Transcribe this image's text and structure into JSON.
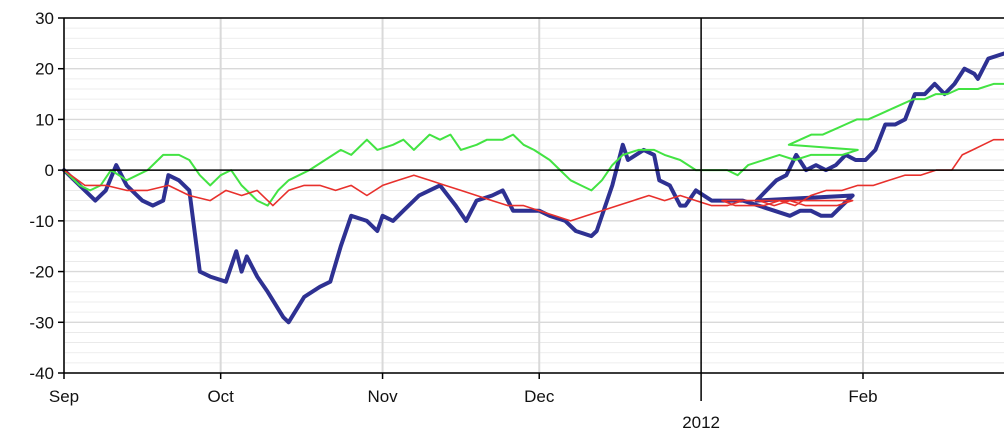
{
  "chart_data": {
    "type": "line",
    "ylim": [
      -40,
      30
    ],
    "yticks": [
      30,
      20,
      10,
      0,
      -10,
      -20,
      -30,
      -40
    ],
    "xlim": [
      "2011-09-01",
      "2012-02-28"
    ],
    "xticks": [
      {
        "label": "Sep",
        "date": "2011-09-01"
      },
      {
        "label": "Oct",
        "date": "2011-10-01"
      },
      {
        "label": "Nov",
        "date": "2011-11-01"
      },
      {
        "label": "Dec",
        "date": "2011-12-01"
      },
      {
        "label": "Feb",
        "date": "2012-02-01"
      }
    ],
    "year_marker": {
      "label": "2012",
      "date": "2012-01-01"
    },
    "grid": true,
    "colors": {
      "blue": "#2e3192",
      "green": "#43e343",
      "red": "#e8302c",
      "grid": "#d9d9d9",
      "axis": "#000000"
    },
    "series": [
      {
        "color": "#2e3192",
        "points": [
          [
            "2011-09-01",
            0
          ],
          [
            "2011-09-04",
            -3
          ],
          [
            "2011-09-07",
            -6
          ],
          [
            "2011-09-09",
            -4
          ],
          [
            "2011-09-11",
            1
          ],
          [
            "2011-09-13",
            -3
          ],
          [
            "2011-09-16",
            -6
          ],
          [
            "2011-09-18",
            -7
          ],
          [
            "2011-09-20",
            -6
          ],
          [
            "2011-09-21",
            -1
          ],
          [
            "2011-09-23",
            -2
          ],
          [
            "2011-09-25",
            -4
          ],
          [
            "2011-09-27",
            -20
          ],
          [
            "2011-09-29",
            -21
          ],
          [
            "2011-10-02",
            -22
          ],
          [
            "2011-10-04",
            -16
          ],
          [
            "2011-10-05",
            -20
          ],
          [
            "2011-10-06",
            -17
          ],
          [
            "2011-10-08",
            -21
          ],
          [
            "2011-10-10",
            -24
          ],
          [
            "2011-10-13",
            -29
          ],
          [
            "2011-10-14",
            -30
          ],
          [
            "2011-10-17",
            -25
          ],
          [
            "2011-10-20",
            -23
          ],
          [
            "2011-10-22",
            -22
          ],
          [
            "2011-10-24",
            -15
          ],
          [
            "2011-10-26",
            -9
          ],
          [
            "2011-10-29",
            -10
          ],
          [
            "2011-10-31",
            -12
          ],
          [
            "2011-11-01",
            -9
          ],
          [
            "2011-11-03",
            -10
          ],
          [
            "2011-11-05",
            -8
          ],
          [
            "2011-11-08",
            -5
          ],
          [
            "2011-11-10",
            -4
          ],
          [
            "2011-11-12",
            -3
          ],
          [
            "2011-11-15",
            -7
          ],
          [
            "2011-11-17",
            -10
          ],
          [
            "2011-11-19",
            -6
          ],
          [
            "2011-11-22",
            -5
          ],
          [
            "2011-11-24",
            -4
          ],
          [
            "2011-11-26",
            -8
          ],
          [
            "2011-11-28",
            -8
          ],
          [
            "2011-12-01",
            -8
          ],
          [
            "2011-12-03",
            -9
          ],
          [
            "2011-12-06",
            -10
          ],
          [
            "2011-12-08",
            -12
          ],
          [
            "2011-12-11",
            -13
          ],
          [
            "2011-12-12",
            -12
          ],
          [
            "2011-12-15",
            -3
          ],
          [
            "2011-12-17",
            5
          ],
          [
            "2011-12-18",
            2
          ],
          [
            "2011-12-21",
            4
          ],
          [
            "2011-12-23",
            3
          ],
          [
            "2011-12-24",
            -2
          ],
          [
            "2011-12-26",
            -3
          ],
          [
            "2011-12-28",
            -7
          ],
          [
            "2011-12-29",
            -7
          ],
          [
            "2011-12-31",
            -4
          ],
          [
            "2012-01-03",
            -6
          ],
          [
            "2012-01-06",
            -6
          ],
          [
            "2012-01-09",
            -6
          ],
          [
            "2012-01-12",
            -7
          ],
          [
            "2012-01-15",
            -8
          ],
          [
            "2012-01-18",
            -9
          ],
          [
            "2012-01-20",
            -8
          ],
          [
            "2012-01-22",
            -8
          ],
          [
            "2012-01-24",
            -9
          ],
          [
            "2012-01-26",
            -9
          ],
          [
            "2012-01-28",
            -7
          ],
          [
            "2012-01-30",
            -5
          ],
          [
            "2012-01-01",
            -6
          ],
          [
            "2012-01-04",
            -4
          ],
          [
            "2012-01-07",
            -2
          ],
          [
            "2012-01-10",
            -1
          ],
          [
            "2012-01-12",
            3
          ],
          [
            "2012-01-15",
            0
          ],
          [
            "2012-01-17",
            1
          ],
          [
            "2012-01-19",
            0
          ],
          [
            "2012-01-20",
            1
          ],
          [
            "2012-01-22",
            3
          ],
          [
            "2012-01-24",
            2
          ],
          [
            "2012-01-26",
            2
          ],
          [
            "2012-01-29",
            4
          ],
          [
            "2012-01-31",
            9
          ],
          [
            "2012-02-02",
            9
          ],
          [
            "2012-02-05",
            10
          ],
          [
            "2012-02-07",
            15
          ],
          [
            "2012-02-10",
            15
          ],
          [
            "2012-02-12",
            17
          ],
          [
            "2012-02-14",
            15
          ],
          [
            "2012-02-16",
            17
          ],
          [
            "2012-02-18",
            20
          ],
          [
            "2012-02-20",
            19
          ],
          [
            "2012-02-23",
            18
          ],
          [
            "2012-02-25",
            22
          ],
          [
            "2012-02-28",
            23
          ]
        ]
      },
      {
        "color": "#43e343",
        "points": [
          [
            "2011-09-01",
            0
          ],
          [
            "2011-09-04",
            -3
          ],
          [
            "2011-09-06",
            -4
          ],
          [
            "2011-09-08",
            -3
          ],
          [
            "2011-09-10",
            0
          ],
          [
            "2011-09-13",
            -2
          ],
          [
            "2011-09-15",
            -1
          ],
          [
            "2011-09-17",
            0
          ],
          [
            "2011-09-20",
            3
          ],
          [
            "2011-09-23",
            3
          ],
          [
            "2011-09-25",
            2
          ],
          [
            "2011-09-27",
            -1
          ],
          [
            "2011-09-29",
            -3
          ],
          [
            "2011-10-01",
            -1
          ],
          [
            "2011-10-03",
            0
          ],
          [
            "2011-10-05",
            -3
          ],
          [
            "2011-10-08",
            -6
          ],
          [
            "2011-10-10",
            -7
          ],
          [
            "2011-10-12",
            -4
          ],
          [
            "2011-10-14",
            -2
          ],
          [
            "2011-10-16",
            -1
          ],
          [
            "2011-10-18",
            0
          ],
          [
            "2011-10-21",
            2
          ],
          [
            "2011-10-24",
            4
          ],
          [
            "2011-10-26",
            3
          ],
          [
            "2011-10-29",
            6
          ],
          [
            "2011-10-31",
            4
          ],
          [
            "2011-11-03",
            5
          ],
          [
            "2011-11-05",
            6
          ],
          [
            "2011-11-07",
            4
          ],
          [
            "2011-11-10",
            7
          ],
          [
            "2011-11-12",
            6
          ],
          [
            "2011-11-14",
            7
          ],
          [
            "2011-11-16",
            4
          ],
          [
            "2011-11-19",
            5
          ],
          [
            "2011-11-21",
            6
          ],
          [
            "2011-11-24",
            6
          ],
          [
            "2011-11-26",
            7
          ],
          [
            "2011-11-28",
            5
          ],
          [
            "2011-11-30",
            4
          ],
          [
            "2011-12-03",
            2
          ],
          [
            "2011-12-05",
            0
          ],
          [
            "2011-12-07",
            -2
          ],
          [
            "2011-12-09",
            -3
          ],
          [
            "2011-12-11",
            -4
          ],
          [
            "2011-12-13",
            -2
          ],
          [
            "2011-12-15",
            1
          ],
          [
            "2011-12-17",
            3
          ],
          [
            "2011-12-20",
            4
          ],
          [
            "2011-12-23",
            4
          ],
          [
            "2011-12-25",
            3
          ],
          [
            "2011-12-28",
            2
          ],
          [
            "2011-12-31",
            0
          ],
          [
            "2012-01-03",
            0
          ],
          [
            "2012-01-06",
            0
          ],
          [
            "2012-01-08",
            -1
          ],
          [
            "2012-01-10",
            1
          ],
          [
            "2012-01-13",
            2
          ],
          [
            "2012-01-16",
            3
          ],
          [
            "2012-01-19",
            2
          ],
          [
            "2012-01-22",
            3
          ],
          [
            "2012-01-25",
            3
          ],
          [
            "2012-01-28",
            3
          ],
          [
            "2012-01-31",
            4
          ],
          [
            "2012-01-03",
            5
          ],
          [
            "2012-01-06",
            6
          ],
          [
            "2012-01-09",
            7
          ],
          [
            "2012-01-12",
            7
          ],
          [
            "2012-01-15",
            8
          ],
          [
            "2012-01-18",
            9
          ],
          [
            "2012-01-21",
            10
          ],
          [
            "2012-01-24",
            10
          ],
          [
            "2012-01-27",
            11
          ],
          [
            "2012-01-30",
            12
          ],
          [
            "2012-02-02",
            13
          ],
          [
            "2012-02-05",
            14
          ],
          [
            "2012-02-08",
            14
          ],
          [
            "2012-02-11",
            15
          ],
          [
            "2012-02-14",
            15
          ],
          [
            "2012-02-17",
            16
          ],
          [
            "2012-02-20",
            16
          ],
          [
            "2012-02-23",
            16
          ],
          [
            "2012-02-26",
            17
          ],
          [
            "2012-02-28",
            17
          ]
        ]
      },
      {
        "color": "#e8302c",
        "points": [
          [
            "2011-09-01",
            0
          ],
          [
            "2011-09-05",
            -3
          ],
          [
            "2011-09-09",
            -3
          ],
          [
            "2011-09-13",
            -4
          ],
          [
            "2011-09-17",
            -4
          ],
          [
            "2011-09-21",
            -3
          ],
          [
            "2011-09-25",
            -5
          ],
          [
            "2011-09-29",
            -6
          ],
          [
            "2011-10-02",
            -4
          ],
          [
            "2011-10-05",
            -5
          ],
          [
            "2011-10-08",
            -4
          ],
          [
            "2011-10-11",
            -7
          ],
          [
            "2011-10-14",
            -4
          ],
          [
            "2011-10-17",
            -3
          ],
          [
            "2011-10-20",
            -3
          ],
          [
            "2011-10-23",
            -4
          ],
          [
            "2011-10-26",
            -3
          ],
          [
            "2011-10-29",
            -5
          ],
          [
            "2011-11-01",
            -3
          ],
          [
            "2011-11-04",
            -2
          ],
          [
            "2011-11-07",
            -1
          ],
          [
            "2011-11-10",
            -2
          ],
          [
            "2011-11-13",
            -3
          ],
          [
            "2011-11-16",
            -4
          ],
          [
            "2011-11-19",
            -5
          ],
          [
            "2011-11-22",
            -6
          ],
          [
            "2011-11-25",
            -7
          ],
          [
            "2011-11-28",
            -7
          ],
          [
            "2011-12-01",
            -8
          ],
          [
            "2011-12-04",
            -9
          ],
          [
            "2011-12-07",
            -10
          ],
          [
            "2011-12-10",
            -9
          ],
          [
            "2011-12-13",
            -8
          ],
          [
            "2011-12-16",
            -7
          ],
          [
            "2011-12-19",
            -6
          ],
          [
            "2011-12-22",
            -5
          ],
          [
            "2011-12-25",
            -6
          ],
          [
            "2011-12-28",
            -5
          ],
          [
            "2011-12-31",
            -6
          ],
          [
            "2012-01-03",
            -7
          ],
          [
            "2012-01-06",
            -7
          ],
          [
            "2012-01-09",
            -6
          ],
          [
            "2012-01-12",
            -6
          ],
          [
            "2012-01-15",
            -7
          ],
          [
            "2012-01-18",
            -6
          ],
          [
            "2012-01-21",
            -7
          ],
          [
            "2012-01-24",
            -7
          ],
          [
            "2012-01-27",
            -7
          ],
          [
            "2012-01-30",
            -6
          ],
          [
            "2012-01-01",
            -6
          ],
          [
            "2012-01-04",
            -7
          ],
          [
            "2012-01-07",
            -7
          ],
          [
            "2012-01-10",
            -7
          ],
          [
            "2012-01-13",
            -7
          ],
          [
            "2012-01-16",
            -6
          ],
          [
            "2012-01-19",
            -7
          ],
          [
            "2012-01-22",
            -5
          ],
          [
            "2012-01-25",
            -4
          ],
          [
            "2012-01-28",
            -4
          ],
          [
            "2012-01-31",
            -3
          ],
          [
            "2012-02-03",
            -3
          ],
          [
            "2012-02-06",
            -2
          ],
          [
            "2012-02-09",
            -1
          ],
          [
            "2012-02-12",
            -1
          ],
          [
            "2012-02-15",
            0
          ],
          [
            "2012-02-18",
            0
          ],
          [
            "2012-02-20",
            3
          ],
          [
            "2012-02-22",
            4
          ],
          [
            "2012-02-24",
            5
          ],
          [
            "2012-02-26",
            6
          ],
          [
            "2012-02-28",
            6
          ]
        ]
      }
    ]
  }
}
